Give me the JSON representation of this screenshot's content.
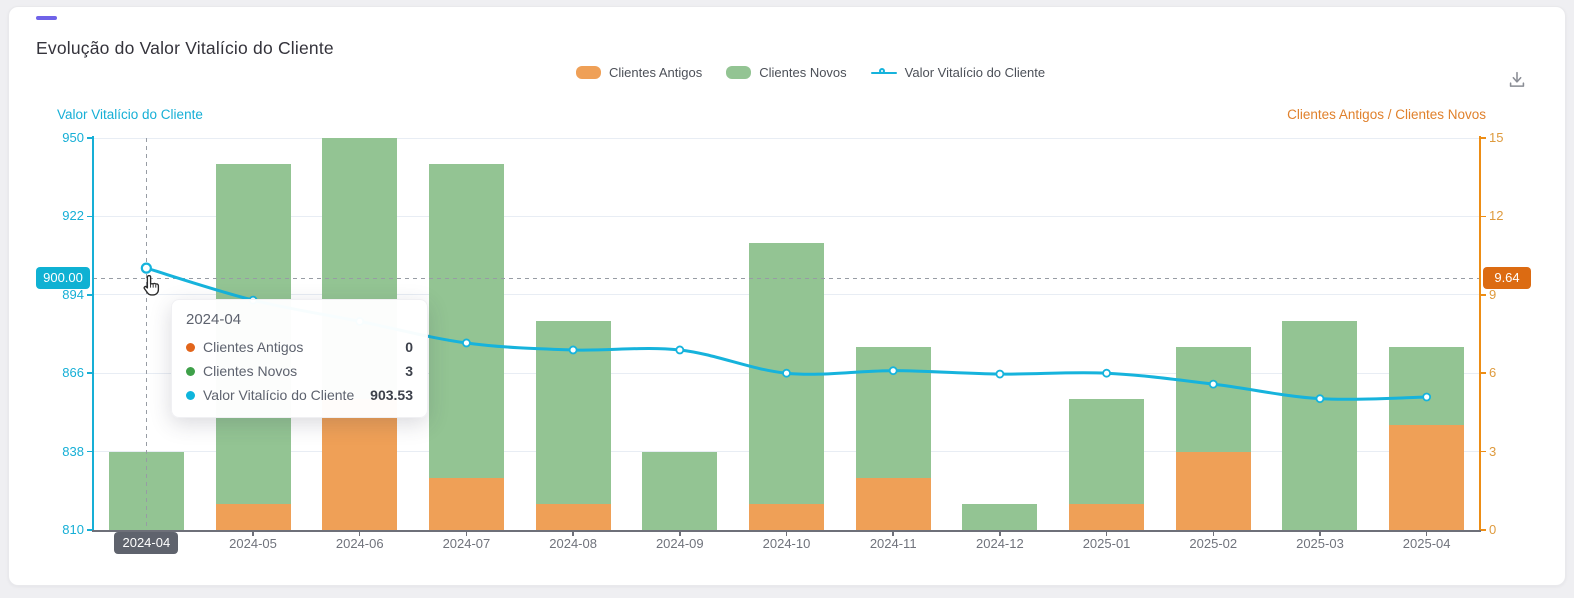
{
  "header": {
    "title": "Evolução do Valor Vitalício do Cliente"
  },
  "toolbar": {
    "download_icon": "download"
  },
  "legend": {
    "items": [
      {
        "label": "Clientes Antigos",
        "type": "bar",
        "color": "#EFA057"
      },
      {
        "label": "Clientes Novos",
        "type": "bar",
        "color": "#93C493"
      },
      {
        "label": "Valor Vitalício do Cliente",
        "type": "line",
        "color": "#16B3DC"
      }
    ]
  },
  "axes": {
    "left": {
      "title": "Valor Vitalício do Cliente",
      "color": "#16AFD6",
      "ticks": [
        810,
        838,
        866,
        894,
        922,
        950
      ]
    },
    "right": {
      "title": "Clientes Antigos / Clientes Novos",
      "title_color": "#E0812C",
      "label_color": "#DE9A3D",
      "line_color": "#ED8D15",
      "ticks": [
        0,
        3,
        6,
        9,
        12,
        15
      ]
    },
    "x": {
      "label_color": "#70737C",
      "highlighted_index": 0
    }
  },
  "chart_data": {
    "type": "bar",
    "subtype": "stacked-bars-with-line-dual-axis",
    "title": "Evolução do Valor Vitalício do Cliente",
    "categories": [
      "2024-04",
      "2024-05",
      "2024-06",
      "2024-07",
      "2024-08",
      "2024-09",
      "2024-10",
      "2024-11",
      "2024-12",
      "2025-01",
      "2025-02",
      "2025-03",
      "2025-04"
    ],
    "series": [
      {
        "name": "Clientes Antigos",
        "type": "bar",
        "stack": "clientes",
        "axis": "right",
        "color": "#EFA057",
        "values": [
          0,
          1,
          5,
          2,
          1,
          0,
          1,
          2,
          0,
          1,
          3,
          0,
          4
        ]
      },
      {
        "name": "Clientes Novos",
        "type": "bar",
        "stack": "clientes",
        "axis": "right",
        "color": "#93C493",
        "values": [
          3,
          13,
          10,
          12,
          7,
          3,
          10,
          5,
          1,
          4,
          4,
          8,
          3
        ]
      },
      {
        "name": "Valor Vitalício do Cliente",
        "type": "line",
        "axis": "left",
        "color": "#16B3DC",
        "values": [
          903.53,
          892.1,
          884.5,
          876.8,
          874.3,
          874.3,
          866.0,
          866.9,
          865.7,
          866.0,
          862.1,
          856.9,
          857.5
        ]
      }
    ],
    "left_axis": {
      "label": "Valor Vitalício do Cliente",
      "range": [
        810,
        950
      ]
    },
    "right_axis": {
      "label": "Clientes Antigos / Clientes Novos",
      "range": [
        0,
        15
      ]
    },
    "grid": true,
    "legend_position": "top"
  },
  "crosshair": {
    "left_value": "900.00",
    "right_value": "9.64",
    "x_label": "2024-04",
    "left_bg": "#0FB1D3",
    "right_bg": "#DC6B12",
    "xlabel_bg": "#5F636D"
  },
  "tooltip": {
    "title": "2024-04",
    "rows": [
      {
        "label": "Clientes Antigos",
        "value": "0",
        "color": "#E2651B"
      },
      {
        "label": "Clientes Novos",
        "value": "3",
        "color": "#3EA049"
      },
      {
        "label": "Valor Vitalício do Cliente",
        "value": "903.53",
        "color": "#0FB5DC"
      }
    ]
  },
  "colors": {
    "grid": "#E8EDF4",
    "x_axis_line": "#6E7079",
    "page_bg": "#EFEFF2",
    "card_bg": "#FFFFFF",
    "accent": "#6F63E8",
    "title": "#34333B"
  }
}
